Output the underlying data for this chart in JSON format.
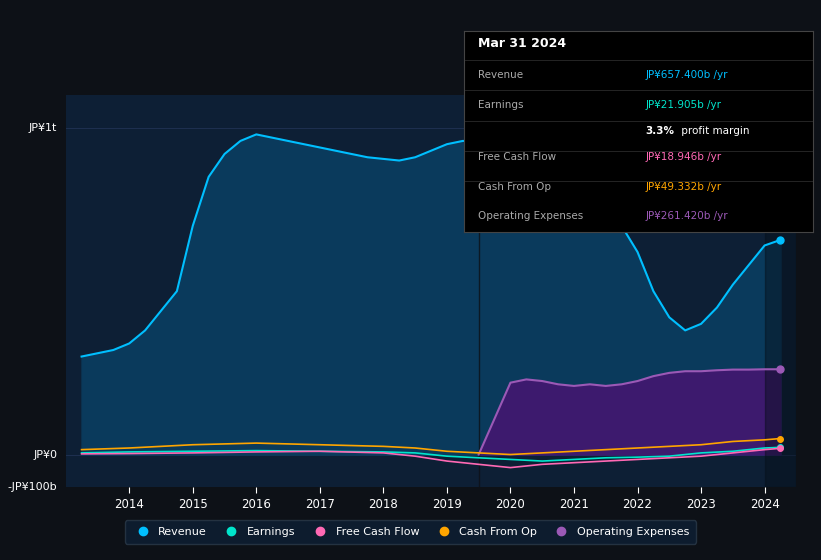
{
  "background_color": "#0d1117",
  "plot_bg_color": "#0d1f35",
  "title_box": {
    "date": "Mar 31 2024",
    "rows": [
      {
        "label": "Revenue",
        "value": "JP¥657.400b /yr",
        "value_color": "#00bfff"
      },
      {
        "label": "Earnings",
        "value": "JP¥21.905b /yr",
        "value_color": "#00e5cc"
      },
      {
        "label": "",
        "value": "3.3% profit margin",
        "value_color": "#ffffff"
      },
      {
        "label": "Free Cash Flow",
        "value": "JP¥18.946b /yr",
        "value_color": "#ff69b4"
      },
      {
        "label": "Cash From Op",
        "value": "JP¥49.332b /yr",
        "value_color": "#ffa500"
      },
      {
        "label": "Operating Expenses",
        "value": "JP¥261.420b /yr",
        "value_color": "#9b59b6"
      }
    ]
  },
  "ylim": [
    -100,
    1100
  ],
  "xlim": [
    2013.0,
    2024.5
  ],
  "xticks": [
    2014,
    2015,
    2016,
    2017,
    2018,
    2019,
    2020,
    2021,
    2022,
    2023,
    2024
  ],
  "grid_color": "#1e3050",
  "revenue": {
    "x": [
      2013.25,
      2013.75,
      2014.0,
      2014.25,
      2014.75,
      2015.0,
      2015.25,
      2015.5,
      2015.75,
      2016.0,
      2016.25,
      2016.5,
      2016.75,
      2017.0,
      2017.25,
      2017.5,
      2017.75,
      2018.0,
      2018.25,
      2018.5,
      2018.75,
      2019.0,
      2019.25,
      2019.5,
      2019.75,
      2020.0,
      2020.25,
      2020.5,
      2020.75,
      2021.0,
      2021.25,
      2021.5,
      2021.75,
      2022.0,
      2022.25,
      2022.5,
      2022.75,
      2023.0,
      2023.25,
      2023.5,
      2023.75,
      2024.0,
      2024.25
    ],
    "y": [
      300,
      320,
      340,
      380,
      500,
      700,
      850,
      920,
      960,
      980,
      970,
      960,
      950,
      940,
      930,
      920,
      910,
      905,
      900,
      910,
      930,
      950,
      960,
      960,
      950,
      940,
      890,
      850,
      820,
      800,
      780,
      760,
      700,
      620,
      500,
      420,
      380,
      400,
      450,
      520,
      580,
      640,
      657
    ],
    "color": "#00bfff",
    "fill_color": "#0a3a5c"
  },
  "earnings": {
    "x": [
      2013.25,
      2014.0,
      2015.0,
      2016.0,
      2017.0,
      2018.0,
      2018.5,
      2019.0,
      2019.5,
      2020.0,
      2020.5,
      2021.0,
      2021.5,
      2022.0,
      2022.5,
      2023.0,
      2023.5,
      2024.0,
      2024.25
    ],
    "y": [
      5,
      8,
      10,
      12,
      10,
      8,
      5,
      -5,
      -10,
      -15,
      -20,
      -15,
      -10,
      -8,
      -5,
      5,
      10,
      20,
      22
    ],
    "color": "#00e5cc"
  },
  "free_cash_flow": {
    "x": [
      2013.25,
      2014.0,
      2015.0,
      2016.0,
      2017.0,
      2018.0,
      2018.5,
      2019.0,
      2019.5,
      2020.0,
      2020.5,
      2021.0,
      2021.5,
      2022.0,
      2022.5,
      2023.0,
      2023.5,
      2024.0,
      2024.25
    ],
    "y": [
      2,
      3,
      5,
      8,
      10,
      5,
      -5,
      -20,
      -30,
      -40,
      -30,
      -25,
      -20,
      -15,
      -10,
      -5,
      5,
      15,
      19
    ],
    "color": "#ff69b4"
  },
  "cash_from_op": {
    "x": [
      2013.25,
      2014.0,
      2015.0,
      2016.0,
      2017.0,
      2018.0,
      2018.5,
      2019.0,
      2019.5,
      2020.0,
      2020.5,
      2021.0,
      2021.5,
      2022.0,
      2022.5,
      2023.0,
      2023.5,
      2024.0,
      2024.25
    ],
    "y": [
      15,
      20,
      30,
      35,
      30,
      25,
      20,
      10,
      5,
      0,
      5,
      10,
      15,
      20,
      25,
      30,
      40,
      45,
      49
    ],
    "color": "#ffa500"
  },
  "operating_expenses": {
    "x": [
      2019.5,
      2020.0,
      2020.25,
      2020.5,
      2020.75,
      2021.0,
      2021.25,
      2021.5,
      2021.75,
      2022.0,
      2022.25,
      2022.5,
      2022.75,
      2023.0,
      2023.25,
      2023.5,
      2023.75,
      2024.0,
      2024.25
    ],
    "y": [
      0,
      220,
      230,
      225,
      215,
      210,
      215,
      210,
      215,
      225,
      240,
      250,
      255,
      255,
      258,
      260,
      260,
      261,
      261
    ],
    "color": "#9b59b6",
    "fill_color": "#3d1a6e"
  },
  "legend": [
    {
      "label": "Revenue",
      "color": "#00bfff"
    },
    {
      "label": "Earnings",
      "color": "#00e5cc"
    },
    {
      "label": "Free Cash Flow",
      "color": "#ff69b4"
    },
    {
      "label": "Cash From Op",
      "color": "#ffa500"
    },
    {
      "label": "Operating Expenses",
      "color": "#9b59b6"
    }
  ],
  "vline_x": 2019.5,
  "right_shade_start": 2024.0
}
